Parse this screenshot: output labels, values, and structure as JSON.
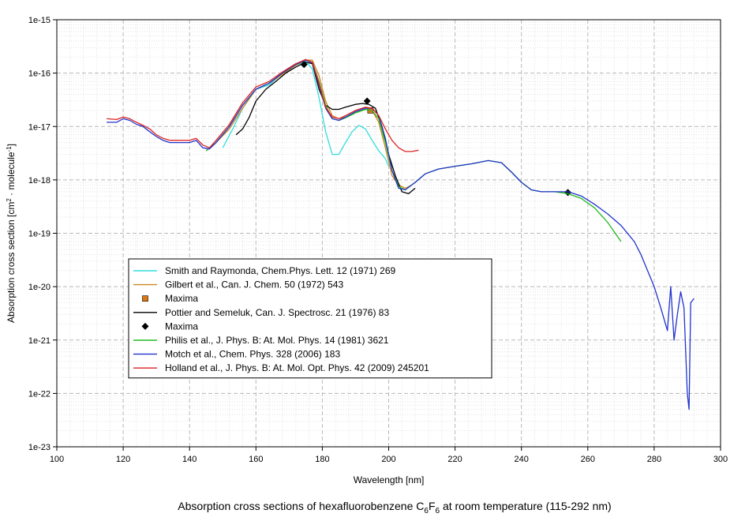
{
  "chart_data": {
    "type": "line",
    "xlabel": "Wavelength [nm]",
    "ylabel": {
      "prefix": "Absorption cross section [cm",
      "sup1": "2",
      "mid": " · molecule",
      "sup2": "-1",
      "suffix": "]"
    },
    "caption": {
      "prefix": "Absorption cross sections of hexafluorobenzene C",
      "sub1": "6",
      "mid": "F",
      "sub2": "6",
      "suffix": " at room temperature (115-292 nm)"
    },
    "xlim": [
      100,
      300
    ],
    "ylim_log10": [
      -23,
      -15
    ],
    "x_ticks": [
      100,
      120,
      140,
      160,
      180,
      200,
      220,
      240,
      260,
      280,
      300
    ],
    "y_ticks": [
      {
        "exp": -15,
        "label": "1e-15"
      },
      {
        "exp": -16,
        "label": "1e-16"
      },
      {
        "exp": -17,
        "label": "1e-17"
      },
      {
        "exp": -18,
        "label": "1e-18"
      },
      {
        "exp": -19,
        "label": "1e-19"
      },
      {
        "exp": -20,
        "label": "1e-20"
      },
      {
        "exp": -21,
        "label": "1e-21"
      },
      {
        "exp": -22,
        "label": "1e-22"
      },
      {
        "exp": -23,
        "label": "1e-23"
      }
    ],
    "grid": true,
    "legend_position": "bottom-left",
    "series": [
      {
        "name": "Smith and  Raymonda, Chem.Phys. Lett. 12 (1971) 269",
        "kind": "line",
        "color": "#33dddd",
        "x": [
          150,
          153,
          156,
          160,
          164,
          168,
          172,
          175,
          177,
          179,
          181,
          183,
          185,
          187,
          189,
          191,
          193,
          195,
          197,
          199,
          200
        ],
        "y": [
          4e-18,
          9e-18,
          2.2e-17,
          5e-17,
          6e-17,
          1e-16,
          1.4e-16,
          1.65e-16,
          1.2e-16,
          3.5e-17,
          8e-18,
          3e-18,
          3e-18,
          5e-18,
          8e-18,
          1.05e-17,
          9e-18,
          5.5e-18,
          3.5e-18,
          2.5e-18,
          1.8e-18
        ]
      },
      {
        "name": "Gilbert et al., Can. J. Chem. 50 (1972) 543",
        "kind": "line",
        "color": "#cc8822",
        "x": [
          145,
          148,
          152,
          156,
          160,
          164,
          168,
          172,
          175,
          177,
          179,
          181,
          183,
          185,
          187,
          190,
          193,
          195,
          197,
          199,
          201,
          203,
          205,
          207
        ],
        "y": [
          3.5e-18,
          5e-18,
          9e-18,
          2.2e-17,
          5e-17,
          6.5e-17,
          9.5e-17,
          1.4e-16,
          1.75e-16,
          1.75e-16,
          9e-17,
          3e-17,
          1.6e-17,
          1.4e-17,
          1.5e-17,
          1.8e-17,
          2.1e-17,
          2e-17,
          1.2e-17,
          4e-18,
          1.2e-18,
          8e-19,
          7e-19,
          8e-19
        ]
      },
      {
        "name": "Maxima",
        "kind": "marker",
        "marker": "square",
        "color": "#dd7711",
        "x": [
          194.5
        ],
        "y": [
          2e-17
        ]
      },
      {
        "name": "Pottier and Semeluk, Can. J. Spectrosc. 21 (1976) 83",
        "kind": "line",
        "color": "#000000",
        "x": [
          154,
          156,
          158,
          160,
          163,
          166,
          169,
          172,
          175,
          177,
          179,
          181,
          183,
          185,
          187,
          190,
          192,
          194,
          196,
          198,
          200,
          202,
          204,
          206,
          208
        ],
        "y": [
          7e-18,
          9e-18,
          1.5e-17,
          3e-17,
          5e-17,
          7e-17,
          1e-16,
          1.3e-16,
          1.6e-16,
          1.5e-16,
          5e-17,
          2.5e-17,
          2.1e-17,
          2.1e-17,
          2.3e-17,
          2.6e-17,
          2.7e-17,
          2.6e-17,
          2.2e-17,
          1e-17,
          3e-18,
          1.2e-18,
          6e-19,
          5.5e-19,
          7e-19
        ]
      },
      {
        "name": "Maxima",
        "kind": "marker",
        "marker": "diamond",
        "color": "#000000",
        "x": [
          174.5,
          193.5,
          254
        ],
        "y": [
          1.45e-16,
          3e-17,
          5.8e-19
        ]
      },
      {
        "name": "Philis et al., J. Phys. B: At. Mol. Phys. 14 (1981) 3621",
        "kind": "line",
        "color": "#22bb22",
        "x": [
          145,
          148,
          152,
          156,
          160,
          164,
          168,
          172,
          175,
          177,
          179,
          181,
          183,
          185,
          187,
          190,
          193,
          195,
          197,
          199,
          201,
          203,
          205,
          208,
          211,
          215,
          220,
          225,
          230,
          234,
          237,
          240,
          243,
          246,
          250,
          254,
          258,
          262,
          266,
          270
        ],
        "y": [
          3.5e-18,
          5e-18,
          1e-17,
          2.5e-17,
          5e-17,
          6.5e-17,
          1e-16,
          1.45e-16,
          1.75e-16,
          1.6e-16,
          7e-17,
          2.5e-17,
          1.4e-17,
          1.3e-17,
          1.45e-17,
          1.8e-17,
          2.1e-17,
          2e-17,
          1.4e-17,
          5e-18,
          1.5e-18,
          7.5e-19,
          6.5e-19,
          9e-19,
          1.3e-18,
          1.6e-18,
          1.8e-18,
          2e-18,
          2.3e-18,
          2.1e-18,
          1.4e-18,
          9e-19,
          6.5e-19,
          6e-19,
          6e-19,
          5.5e-19,
          4.5e-19,
          3e-19,
          1.6e-19,
          7e-20
        ]
      },
      {
        "name": "Motch et al., Chem. Phys. 328 (2006) 183",
        "kind": "line",
        "color": "#2233cc",
        "x": [
          115,
          118,
          120,
          122,
          124,
          126,
          128,
          130,
          132,
          134,
          136,
          138,
          140,
          142,
          144,
          146,
          148,
          152,
          156,
          160,
          164,
          168,
          172,
          175,
          177,
          179,
          181,
          183,
          185,
          187,
          190,
          193,
          195,
          197,
          199,
          201,
          203,
          205,
          208,
          211,
          215,
          220,
          225,
          230,
          234,
          237,
          240,
          243,
          246,
          250,
          254,
          258,
          262,
          266,
          270,
          274,
          276,
          278,
          280,
          282,
          284,
          285,
          286,
          287,
          288,
          289,
          290,
          290.5,
          291,
          292
        ],
        "y": [
          1.2e-17,
          1.2e-17,
          1.4e-17,
          1.3e-17,
          1.1e-17,
          1e-17,
          8e-18,
          6.5e-18,
          5.5e-18,
          5e-18,
          5e-18,
          5e-18,
          5e-18,
          5.5e-18,
          4e-18,
          3.8e-18,
          5e-18,
          1e-17,
          2.5e-17,
          5e-17,
          6.5e-17,
          1e-16,
          1.45e-16,
          1.75e-16,
          1.55e-16,
          6e-17,
          2.2e-17,
          1.4e-17,
          1.3e-17,
          1.5e-17,
          1.9e-17,
          2.2e-17,
          2.2e-17,
          1.6e-17,
          6e-18,
          1.5e-18,
          7e-19,
          6.5e-19,
          9e-19,
          1.3e-18,
          1.6e-18,
          1.8e-18,
          2e-18,
          2.3e-18,
          2.1e-18,
          1.4e-18,
          9e-19,
          6.5e-19,
          6e-19,
          6e-19,
          6e-19,
          5e-19,
          3.5e-19,
          2.3e-19,
          1.4e-19,
          7e-20,
          4e-20,
          2e-20,
          1e-20,
          4e-21,
          1.5e-21,
          1e-20,
          1e-21,
          3e-21,
          8e-21,
          4e-21,
          1e-22,
          5e-23,
          5e-21,
          6e-21
        ]
      },
      {
        "name": "Holland et al., J. Phys. B: At. Mol. Opt. Phys. 42 (2009) 245201",
        "kind": "line",
        "color": "#dd2222",
        "x": [
          115,
          118,
          120,
          122,
          124,
          126,
          128,
          130,
          132,
          134,
          136,
          138,
          140,
          142,
          144,
          146,
          148,
          152,
          156,
          160,
          164,
          168,
          172,
          175,
          177,
          179,
          181,
          183,
          185,
          187,
          190,
          193,
          195,
          197,
          199,
          201,
          203,
          205,
          207,
          209
        ],
        "y": [
          1.4e-17,
          1.35e-17,
          1.5e-17,
          1.4e-17,
          1.2e-17,
          1.05e-17,
          9e-18,
          7e-18,
          6e-18,
          5.5e-18,
          5.5e-18,
          5.5e-18,
          5.5e-18,
          6e-18,
          4.5e-18,
          4e-18,
          5.5e-18,
          1.1e-17,
          2.8e-17,
          5.5e-17,
          7e-17,
          1.05e-16,
          1.5e-16,
          1.8e-16,
          1.6e-16,
          6.5e-17,
          2.3e-17,
          1.5e-17,
          1.4e-17,
          1.6e-17,
          2e-17,
          2.3e-17,
          2.2e-17,
          1.6e-17,
          9e-18,
          5.5e-18,
          4e-18,
          3.4e-18,
          3.4e-18,
          3.6e-18
        ]
      }
    ]
  }
}
